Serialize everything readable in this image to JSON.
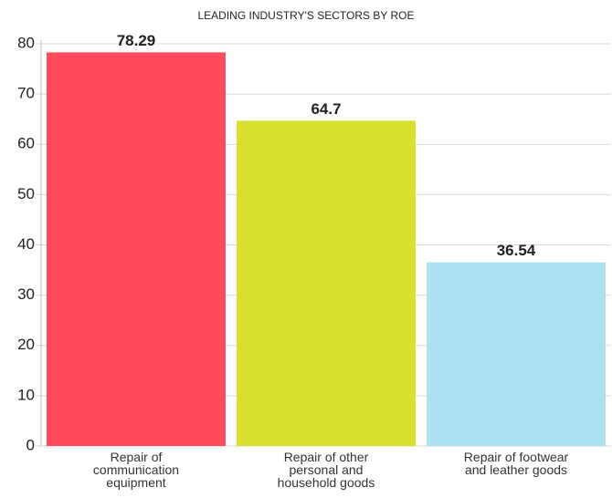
{
  "chart_data": {
    "type": "bar",
    "title": "LEADING INDUSTRY'S SECTORS BY ROE",
    "categories": [
      "Repair of communication equipment",
      "Repair of other personal and household goods",
      "Repair of footwear and leather goods"
    ],
    "values": [
      78.29,
      64.7,
      36.54
    ],
    "colors": [
      "#ff4b5a",
      "#d8e030",
      "#aee0f2"
    ],
    "ylim": [
      0,
      80
    ],
    "yticks": [
      0,
      10,
      20,
      30,
      40,
      50,
      60,
      70,
      80
    ],
    "grid": true
  }
}
